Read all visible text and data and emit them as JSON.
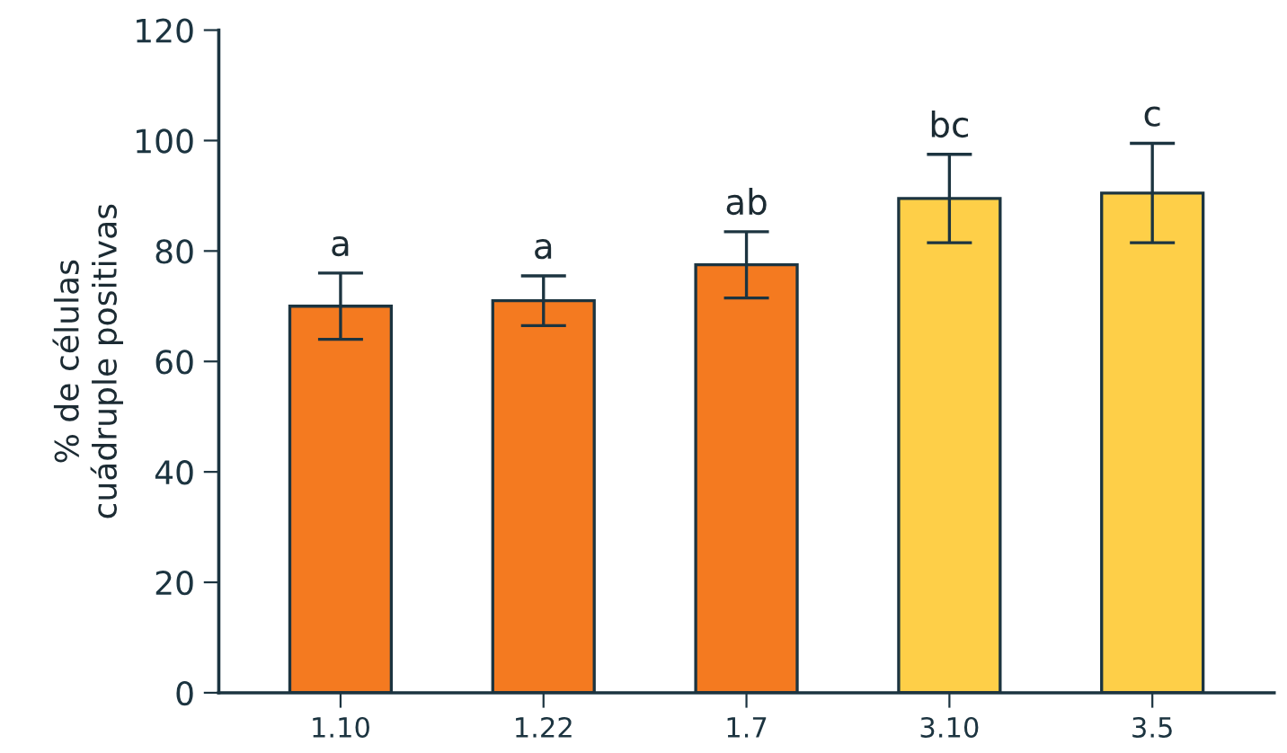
{
  "chart_data": {
    "type": "bar",
    "ylabel": "% de células\ncuádruple positivas",
    "categories": [
      "1.10",
      "1.22",
      "1.7",
      "3.10",
      "3.5"
    ],
    "values": [
      70,
      71,
      77.5,
      89.5,
      90.5
    ],
    "errors": [
      6,
      4.5,
      6,
      8,
      9
    ],
    "colors": [
      "#f47a20",
      "#f47a20",
      "#f47a20",
      "#fecf48",
      "#fecf48"
    ],
    "ylim": [
      0,
      120
    ],
    "yticks": [
      0,
      20,
      40,
      60,
      80,
      100,
      120
    ],
    "grid": false,
    "legend": false,
    "annotations": [
      {
        "text": "a",
        "x": "1.10",
        "y": 76
      },
      {
        "text": "a",
        "x": "1.22",
        "y": 75.5
      },
      {
        "text": "ab",
        "x": "1.7",
        "y": 83.5
      },
      {
        "text": "bc",
        "x": "3.10",
        "y": 97.5
      },
      {
        "text": "c",
        "x": "3.5",
        "y": 99.5
      }
    ]
  }
}
